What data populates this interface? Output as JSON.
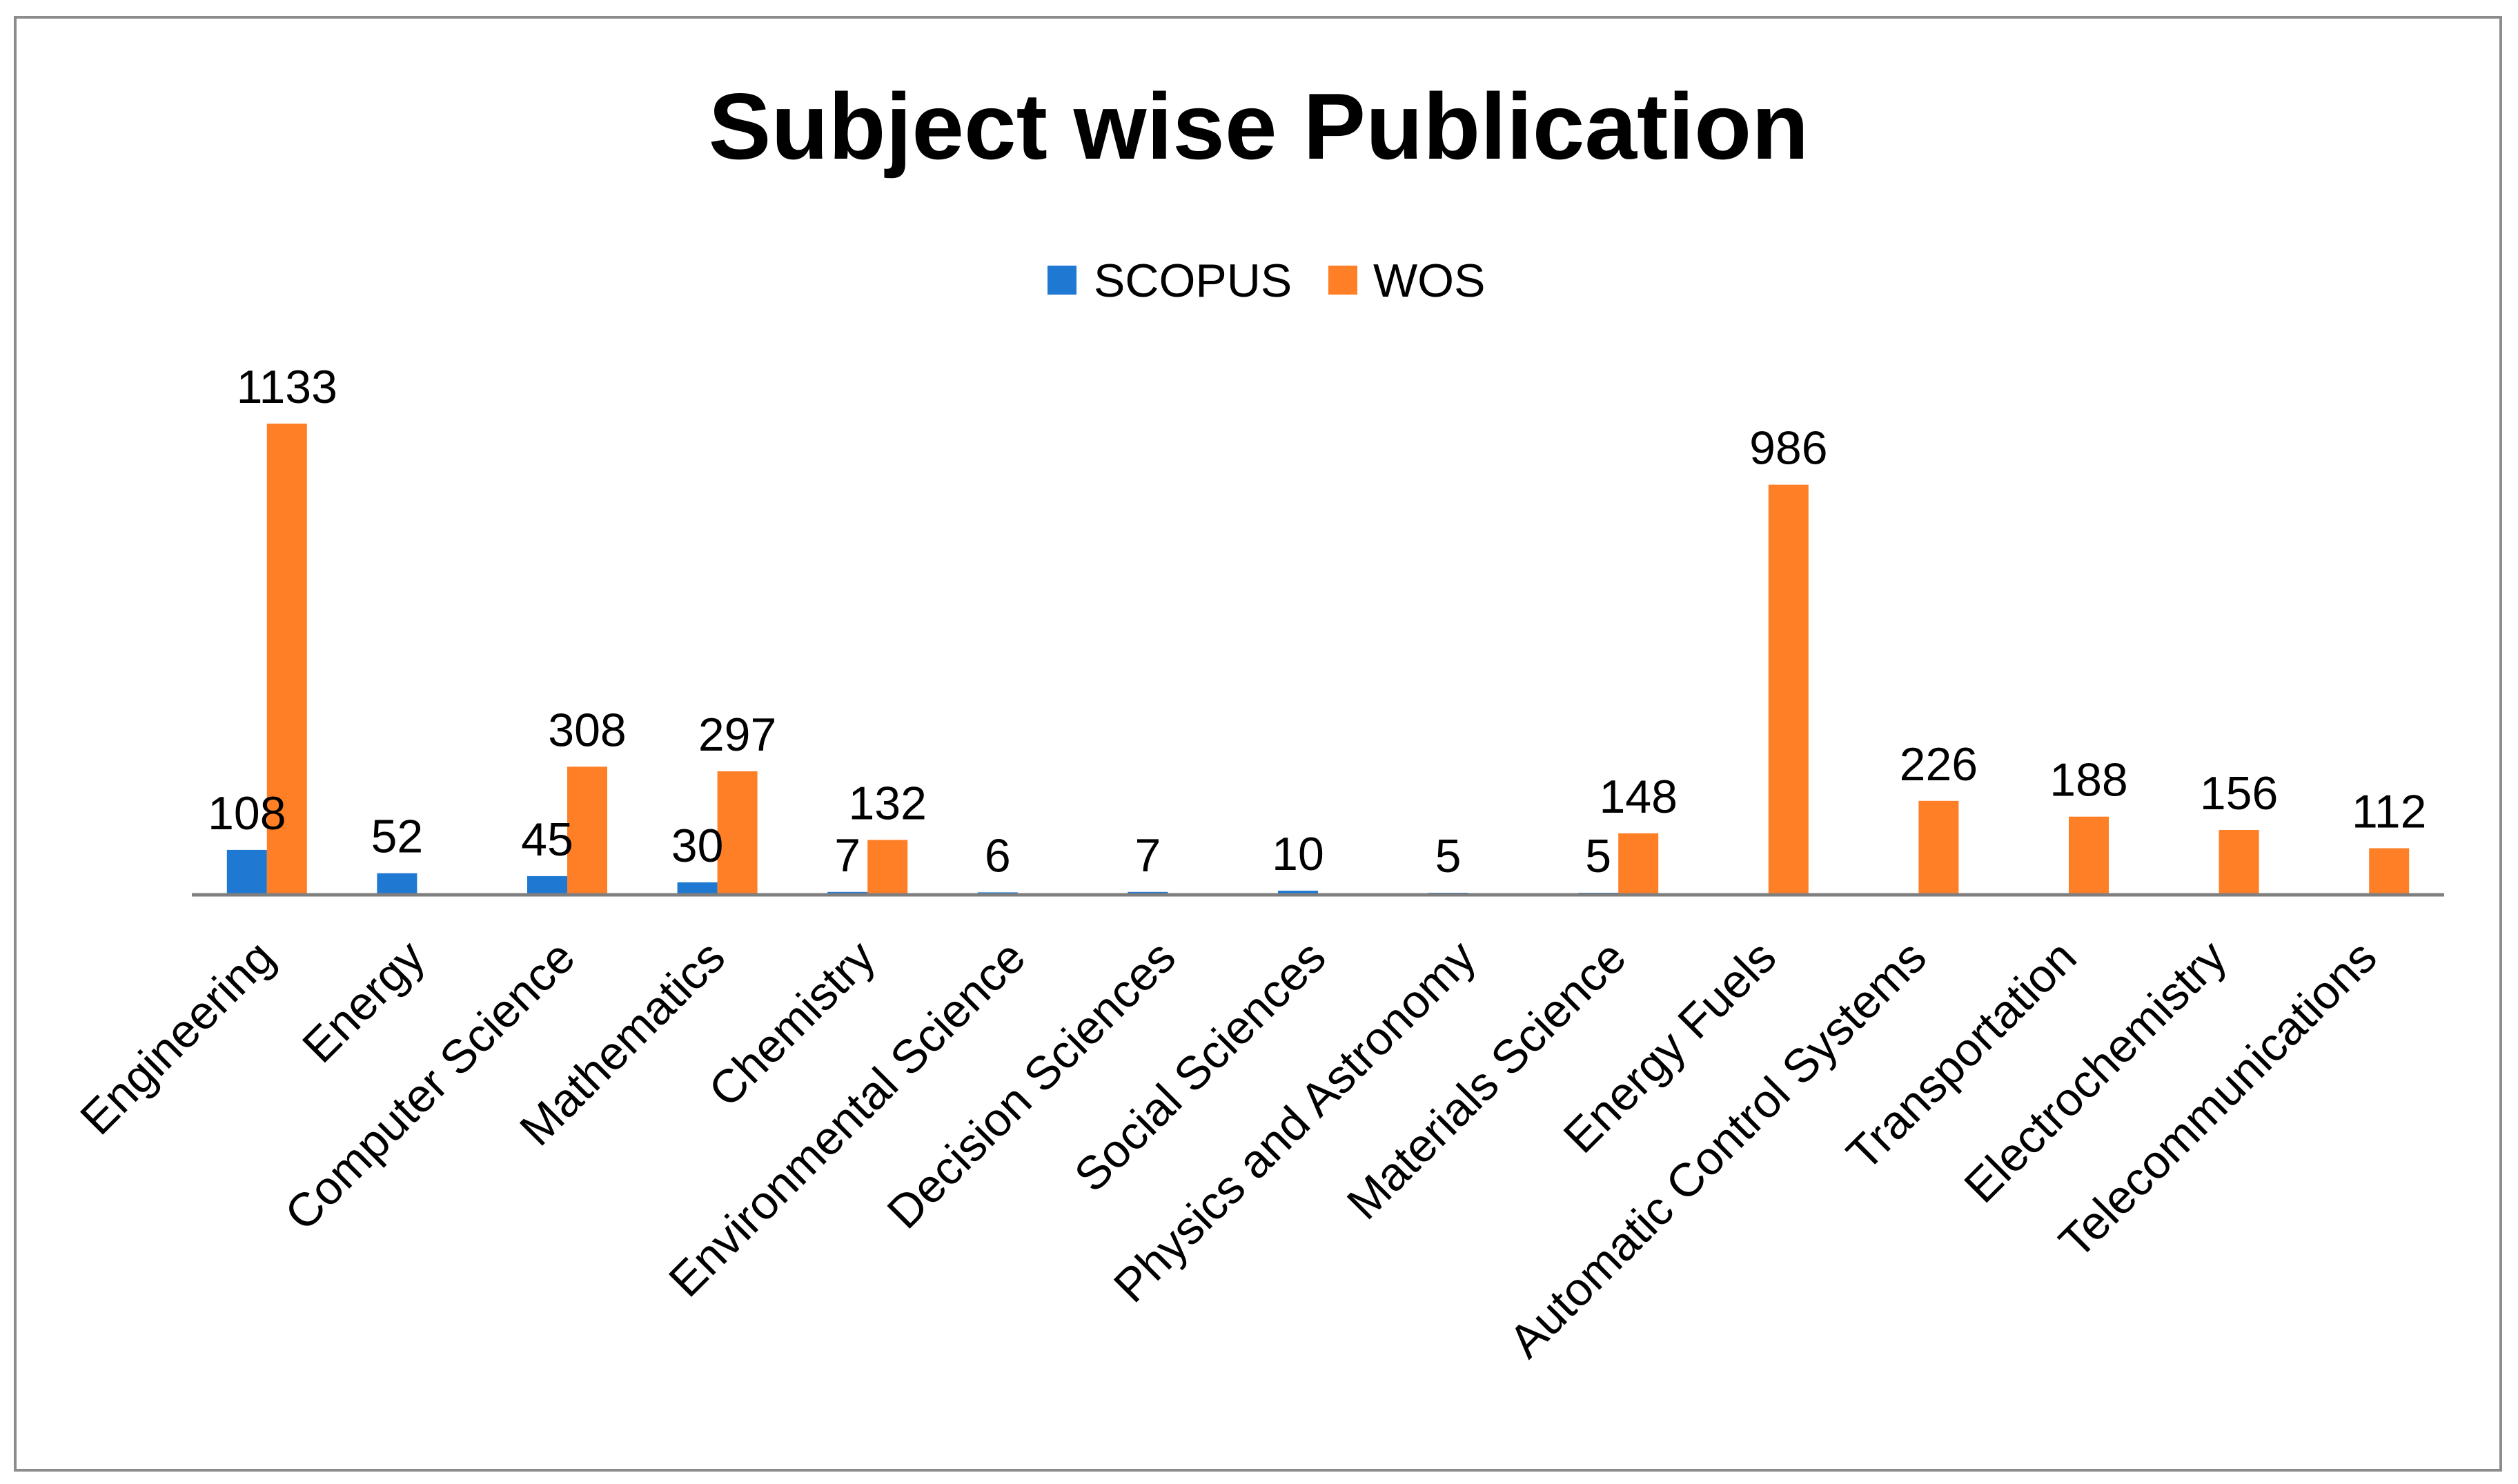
{
  "chart_data": {
    "type": "bar",
    "title": "Subject wise Publication",
    "xlabel": "",
    "ylabel": "",
    "ylim": [
      0,
      1200
    ],
    "grid": false,
    "legend_position": "top-center",
    "categories": [
      "Engineering",
      "Energy",
      "Computer Science",
      "Mathematics",
      "Chemistry",
      "Environmental Science",
      "Decision Sciences",
      "Social Sciences",
      "Physics and Astronomy",
      "Materials Science",
      "Energy Fuels",
      "Automatic Control Systems",
      "Transportation",
      "Electrochemistry",
      "Telecommunications"
    ],
    "series": [
      {
        "name": "SCOPUS",
        "color": "#1f78d1",
        "values": [
          108,
          52,
          45,
          30,
          7,
          6,
          7,
          10,
          5,
          5,
          null,
          null,
          null,
          null,
          null
        ]
      },
      {
        "name": "WOS",
        "color": "#ff7f27",
        "values": [
          1133,
          null,
          308,
          297,
          132,
          null,
          null,
          null,
          null,
          148,
          986,
          226,
          188,
          156,
          112
        ]
      }
    ]
  },
  "frame": {
    "border_color": "#8c8c8c",
    "axis_color": "#7f7f7f"
  }
}
